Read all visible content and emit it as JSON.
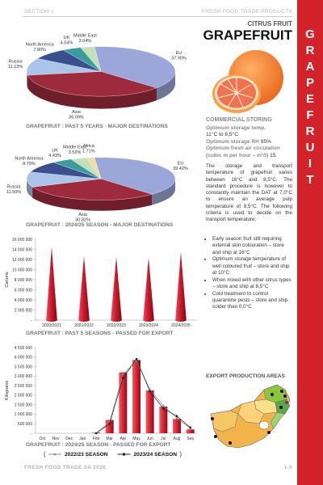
{
  "header": {
    "section": "SECTION 1",
    "publication": "FRESH FOOD TRADE PRODUCTS"
  },
  "side_title": "GRAPEFRUIT",
  "product": {
    "category": "CITRUS FRUIT",
    "name": "GRAPEFRUIT"
  },
  "storing": {
    "heading": "COMMERCIAL STORING",
    "items": [
      {
        "label": "Optimum storage temp.",
        "value": "11°C to 8,5°C"
      },
      {
        "label": "Optimum storage RH",
        "value": "95%"
      },
      {
        "label": "Optimum fresh air circulation (cubic m per hour – m³/t)",
        "value": "15"
      }
    ]
  },
  "paragraph": "The storage and transport temperature of grapefruit varies between 16°C and 8,5°C. The standard procedure is however to constantly maintain the DAT at 7,0°C to ensure an average pulp temperature of 8,5°C. The following criteria is used to decide on the transport temperature:",
  "bullets": [
    "Early season fruit still requiring external skin colouration – store and ship at 16°C",
    "Optimum storage temperature of well coloured fruit – store and ship at 10°C",
    "When mixed with other citrus types – store and ship at 8,5°C",
    "Cold treatment to control quarantine pests – store and ship colder than 0,0°C"
  ],
  "map_title": "EXPORT PRODUCTION AREAS",
  "footer": {
    "publisher": "FRESH FOOD TRADE SA 2026",
    "page": "1-9"
  },
  "chart_data": [
    {
      "type": "pie",
      "title": "GRAPEFRUIT : PAST 5 YEARS - MAJOR DESTINATIONS",
      "categories": [
        "EU",
        "Asia",
        "Russia",
        "North America",
        "UK",
        "Middle East"
      ],
      "values": [
        37.9,
        36.09,
        11.13,
        7.8,
        4.04,
        3.04
      ],
      "value_labels": [
        "37.90%",
        "36.09%",
        "11.13%",
        "7.80%",
        "4.04%",
        "3.04%"
      ],
      "colors": [
        "#9ba7d8",
        "#9e2b3d",
        "#aac4ea",
        "#3b4f8f",
        "#3a9d9b",
        "#c2e1ba"
      ]
    },
    {
      "type": "pie",
      "title": "GRAPEFRUIT : 2024/25 SEASON - MAJOR DESTINATIONS",
      "categories": [
        "EU",
        "Asia",
        "Russia",
        "North America",
        "UK",
        "Middle East",
        "Africa"
      ],
      "values": [
        39.42,
        30.82,
        11.5,
        8.79,
        4.43,
        3.53,
        1.71
      ],
      "value_labels": [
        "39.42%",
        "30.82%",
        "11.50%",
        "8.79%",
        "4.43%",
        "3.53%",
        "1.71%"
      ],
      "colors": [
        "#9ba7d8",
        "#9e2b3d",
        "#aac4ea",
        "#3b4f8f",
        "#3a9d9b",
        "#c2e1ba",
        "#ece0a4"
      ]
    },
    {
      "type": "bar",
      "bar_shape": "cone",
      "title": "GRAPEFRUIT : PAST 5 SEASONS - PASSED FOR EXPORT",
      "y_label": "Cartons",
      "categories": [
        "2020/2021",
        "2021/2022",
        "2022/2023",
        "2023/2024",
        "2024/2025"
      ],
      "values": [
        14500000,
        12700000,
        12500000,
        12400000,
        13500000
      ],
      "color": "#c8182b",
      "ylim": [
        0,
        16000000
      ],
      "yticks": [
        {
          "value": 0,
          "label": "-"
        },
        {
          "value": 2000000,
          "label": "2 000 000"
        },
        {
          "value": 4000000,
          "label": "4 000 000"
        },
        {
          "value": 6000000,
          "label": "6 000 000"
        },
        {
          "value": 8000000,
          "label": "8 000 000"
        },
        {
          "value": 10000000,
          "label": "10 000 000"
        },
        {
          "value": 12000000,
          "label": "12 000 000"
        },
        {
          "value": 14000000,
          "label": "14 000 000"
        },
        {
          "value": 16000000,
          "label": "16 000 000"
        }
      ]
    },
    {
      "type": "bar",
      "bar_shape": "column",
      "title": "GRAPEFRUIT : 2024/25 SEASON - PASSED FOR EXPORT",
      "y_label": "Kilograms",
      "categories": [
        "Oct",
        "Nov",
        "Dec",
        "Jan",
        "Feb",
        "Mar",
        "Apr",
        "May",
        "Jun",
        "Jul",
        "Aug",
        "Sep"
      ],
      "values": [
        0,
        0,
        0,
        0,
        30000,
        700000,
        3200000,
        3850000,
        2250000,
        1400000,
        750000,
        200000
      ],
      "color": "#d1202f",
      "series": [
        {
          "name": "2022/23 SEASON",
          "color": "#8c8c8c",
          "marker": "circle",
          "values": [
            null,
            null,
            null,
            null,
            0,
            600000,
            3100000,
            3800000,
            2300000,
            1450000,
            800000,
            250000
          ]
        },
        {
          "name": "2023/24 SEASON",
          "color": "#222222",
          "marker": "square",
          "values": [
            null,
            null,
            null,
            null,
            0,
            500000,
            2900000,
            3900000,
            2200000,
            1300000,
            900000,
            300000
          ]
        }
      ],
      "ylim": [
        0,
        4500000
      ],
      "yticks": [
        {
          "value": 0,
          "label": "-"
        },
        {
          "value": 500000,
          "label": "500 000"
        },
        {
          "value": 1000000,
          "label": "1 000 000"
        },
        {
          "value": 1500000,
          "label": "1 500 000"
        },
        {
          "value": 2000000,
          "label": "2 000 000"
        },
        {
          "value": 2500000,
          "label": "2 500 000"
        },
        {
          "value": 3000000,
          "label": "3 000 000"
        },
        {
          "value": 3500000,
          "label": "3 500 000"
        },
        {
          "value": 4000000,
          "label": "4 000 000"
        },
        {
          "value": 4500000,
          "label": "4 500 000"
        }
      ]
    }
  ]
}
